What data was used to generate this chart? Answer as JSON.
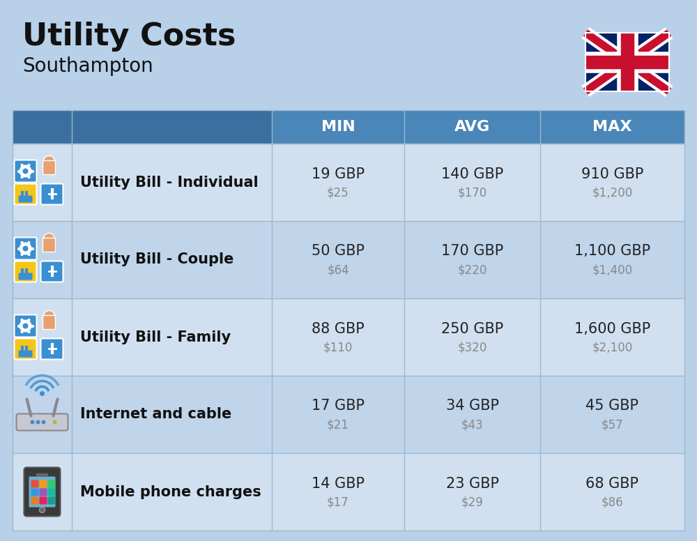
{
  "title": "Utility Costs",
  "subtitle": "Southampton",
  "background_color": "#b8d0e8",
  "header_color": "#4a86b8",
  "header_dark_color": "#3a6fa0",
  "row_color_light": "#d0e0f0",
  "row_color_dark": "#c0d4ea",
  "header_text_color": "#ffffff",
  "row_label_color": "#111111",
  "value_color": "#222222",
  "usd_color": "#888888",
  "col_headers": [
    "MIN",
    "AVG",
    "MAX"
  ],
  "rows": [
    {
      "label": "Utility Bill - Individual",
      "min_gbp": "19 GBP",
      "min_usd": "$25",
      "avg_gbp": "140 GBP",
      "avg_usd": "$170",
      "max_gbp": "910 GBP",
      "max_usd": "$1,200"
    },
    {
      "label": "Utility Bill - Couple",
      "min_gbp": "50 GBP",
      "min_usd": "$64",
      "avg_gbp": "170 GBP",
      "avg_usd": "$220",
      "max_gbp": "1,100 GBP",
      "max_usd": "$1,400"
    },
    {
      "label": "Utility Bill - Family",
      "min_gbp": "88 GBP",
      "min_usd": "$110",
      "avg_gbp": "250 GBP",
      "avg_usd": "$320",
      "max_gbp": "1,600 GBP",
      "max_usd": "$2,100"
    },
    {
      "label": "Internet and cable",
      "min_gbp": "17 GBP",
      "min_usd": "$21",
      "avg_gbp": "34 GBP",
      "avg_usd": "$43",
      "max_gbp": "45 GBP",
      "max_usd": "$57"
    },
    {
      "label": "Mobile phone charges",
      "min_gbp": "14 GBP",
      "min_usd": "$17",
      "avg_gbp": "23 GBP",
      "avg_usd": "$29",
      "max_gbp": "68 GBP",
      "max_usd": "$86"
    }
  ]
}
